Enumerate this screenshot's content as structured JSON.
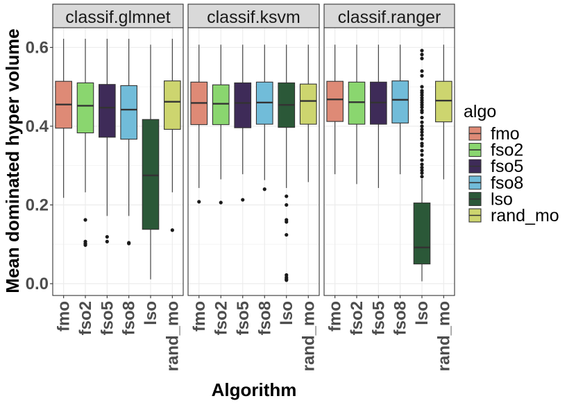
{
  "chart_data": {
    "type": "boxplot",
    "ylabel": "Mean dominated hyper volume",
    "xlabel": "Algorithm",
    "ylim": [
      -0.03,
      0.65
    ],
    "yticks": [
      0.0,
      0.2,
      0.4,
      0.6
    ],
    "ytick_labels": [
      "0.0",
      "0.2",
      "0.4",
      "0.6"
    ],
    "grid": true,
    "legend": {
      "title": "algo",
      "position": "right",
      "entries": [
        {
          "name": "fmo",
          "color": "#de8a76"
        },
        {
          "name": "fso2",
          "color": "#8ad66f"
        },
        {
          "name": "fso5",
          "color": "#3e2b58"
        },
        {
          "name": "fso8",
          "color": "#71bcd9"
        },
        {
          "name": "lso",
          "color": "#2b5838"
        },
        {
          "name": "rand_mo",
          "color": "#cdd56f"
        }
      ]
    },
    "categories": [
      "fmo",
      "fso2",
      "fso5",
      "fso8",
      "lso",
      "rand_mo"
    ],
    "facets": [
      {
        "title": "classif.glmnet",
        "boxes": [
          {
            "algo": "fmo",
            "whisker_low": 0.218,
            "q1": 0.395,
            "median": 0.455,
            "q3": 0.514,
            "whisker_high": 0.622,
            "outliers": []
          },
          {
            "algo": "fso2",
            "whisker_low": 0.232,
            "q1": 0.383,
            "median": 0.452,
            "q3": 0.51,
            "whisker_high": 0.622,
            "outliers": [
              0.162,
              0.107,
              0.102,
              0.098
            ]
          },
          {
            "algo": "fso5",
            "whisker_low": 0.172,
            "q1": 0.372,
            "median": 0.447,
            "q3": 0.506,
            "whisker_high": 0.622,
            "outliers": [
              0.119,
              0.107
            ]
          },
          {
            "algo": "fso8",
            "whisker_low": 0.172,
            "q1": 0.367,
            "median": 0.442,
            "q3": 0.503,
            "whisker_high": 0.622,
            "outliers": [
              0.104,
              0.102
            ]
          },
          {
            "algo": "lso",
            "whisker_low": 0.011,
            "q1": 0.138,
            "median": 0.275,
            "q3": 0.417,
            "whisker_high": 0.607,
            "outliers": []
          },
          {
            "algo": "rand_mo",
            "whisker_low": 0.232,
            "q1": 0.392,
            "median": 0.462,
            "q3": 0.515,
            "whisker_high": 0.622,
            "outliers": [
              0.136
            ]
          }
        ]
      },
      {
        "title": "classif.ksvm",
        "boxes": [
          {
            "algo": "fmo",
            "whisker_low": 0.243,
            "q1": 0.404,
            "median": 0.459,
            "q3": 0.512,
            "whisker_high": 0.607,
            "outliers": [
              0.208
            ]
          },
          {
            "algo": "fso2",
            "whisker_low": 0.265,
            "q1": 0.404,
            "median": 0.457,
            "q3": 0.505,
            "whisker_high": 0.607,
            "outliers": [
              0.206
            ]
          },
          {
            "algo": "fso5",
            "whisker_low": 0.278,
            "q1": 0.396,
            "median": 0.459,
            "q3": 0.51,
            "whisker_high": 0.607,
            "outliers": [
              0.213
            ]
          },
          {
            "algo": "fso8",
            "whisker_low": 0.263,
            "q1": 0.405,
            "median": 0.46,
            "q3": 0.512,
            "whisker_high": 0.607,
            "outliers": [
              0.24
            ]
          },
          {
            "algo": "lso",
            "whisker_low": 0.243,
            "q1": 0.397,
            "median": 0.454,
            "q3": 0.51,
            "whisker_high": 0.607,
            "outliers": [
              0.222,
              0.2,
              0.162,
              0.157,
              0.124,
              0.022,
              0.016,
              0.012,
              0.009
            ]
          },
          {
            "algo": "rand_mo",
            "whisker_low": 0.258,
            "q1": 0.405,
            "median": 0.464,
            "q3": 0.507,
            "whisker_high": 0.607,
            "outliers": []
          }
        ]
      },
      {
        "title": "classif.ranger",
        "boxes": [
          {
            "algo": "fmo",
            "whisker_low": 0.278,
            "q1": 0.412,
            "median": 0.468,
            "q3": 0.514,
            "whisker_high": 0.607,
            "outliers": []
          },
          {
            "algo": "fso2",
            "whisker_low": 0.253,
            "q1": 0.405,
            "median": 0.461,
            "q3": 0.512,
            "whisker_high": 0.607,
            "outliers": []
          },
          {
            "algo": "fso5",
            "whisker_low": 0.243,
            "q1": 0.405,
            "median": 0.46,
            "q3": 0.512,
            "whisker_high": 0.607,
            "outliers": []
          },
          {
            "algo": "fso8",
            "whisker_low": 0.278,
            "q1": 0.408,
            "median": 0.467,
            "q3": 0.515,
            "whisker_high": 0.607,
            "outliers": []
          },
          {
            "algo": "lso",
            "whisker_low": 0.006,
            "q1": 0.05,
            "median": 0.092,
            "q3": 0.205,
            "whisker_high": 0.266,
            "outliers": [
              0.592,
              0.582,
              0.572,
              0.54,
              0.528,
              0.5,
              0.49,
              0.485,
              0.479,
              0.472,
              0.466,
              0.46,
              0.454,
              0.448,
              0.44,
              0.435,
              0.422,
              0.41,
              0.4,
              0.392,
              0.385,
              0.377,
              0.368,
              0.356,
              0.35,
              0.338,
              0.327,
              0.314,
              0.303,
              0.295,
              0.288,
              0.281,
              0.272
            ]
          },
          {
            "algo": "rand_mo",
            "whisker_low": 0.265,
            "q1": 0.411,
            "median": 0.465,
            "q3": 0.514,
            "whisker_high": 0.607,
            "outliers": []
          }
        ]
      }
    ]
  }
}
